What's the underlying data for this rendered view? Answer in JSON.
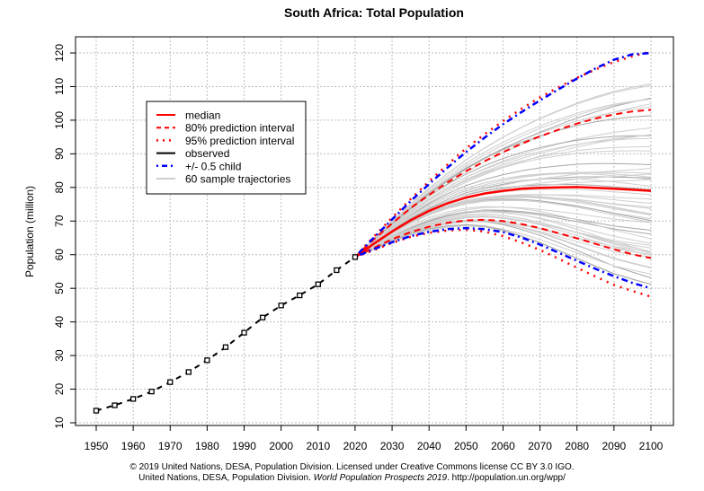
{
  "chart_data": {
    "type": "line",
    "title": "South Africa: Total Population",
    "xlabel": "",
    "ylabel": "Population (million)",
    "xlim": [
      1945,
      2105
    ],
    "ylim": [
      9,
      124
    ],
    "grid": true,
    "xticks": [
      1950,
      1960,
      1970,
      1980,
      1990,
      2000,
      2010,
      2020,
      2030,
      2040,
      2050,
      2060,
      2070,
      2080,
      2090,
      2100
    ],
    "yticks": [
      10,
      20,
      30,
      40,
      50,
      60,
      70,
      80,
      90,
      100,
      110,
      120
    ],
    "legend_position": "top-left",
    "legend": [
      {
        "label": "median",
        "color": "#ff0000",
        "style": "solid"
      },
      {
        "label": "80% prediction interval",
        "color": "#ff0000",
        "style": "dashed"
      },
      {
        "label": "95% prediction interval",
        "color": "#ff0000",
        "style": "dotted"
      },
      {
        "label": "observed",
        "color": "#000000",
        "style": "solid"
      },
      {
        "label": "+/- 0.5 child",
        "color": "#0000ff",
        "style": "dashdot"
      },
      {
        "label": "60 sample trajectories",
        "color": "#bebebe",
        "style": "solid"
      }
    ],
    "observed": {
      "x": [
        1950,
        1955,
        1960,
        1965,
        1970,
        1975,
        1980,
        1985,
        1990,
        1995,
        2000,
        2005,
        2010,
        2015,
        2020
      ],
      "y": [
        13.6,
        15.2,
        17.1,
        19.3,
        22.1,
        25.1,
        28.6,
        32.5,
        36.8,
        41.3,
        44.9,
        47.9,
        51.2,
        55.4,
        59.3
      ]
    },
    "projection_x": [
      2020,
      2025,
      2030,
      2035,
      2040,
      2045,
      2050,
      2055,
      2060,
      2065,
      2070,
      2075,
      2080,
      2085,
      2090,
      2095,
      2100
    ],
    "series": [
      {
        "name": "median",
        "values": [
          59.3,
          63.2,
          66.9,
          70.2,
          73.0,
          75.3,
          77.0,
          78.2,
          79.0,
          79.6,
          79.9,
          80.0,
          80.1,
          79.9,
          79.6,
          79.3,
          79.0
        ]
      },
      {
        "name": "80% PI upper",
        "values": [
          59.3,
          64.5,
          69.3,
          73.8,
          77.8,
          81.5,
          84.8,
          87.8,
          90.5,
          93.0,
          95.2,
          97.2,
          99.0,
          100.5,
          101.7,
          102.6,
          103.1
        ]
      },
      {
        "name": "80% PI lower",
        "values": [
          59.3,
          62.0,
          64.6,
          66.7,
          68.3,
          69.5,
          70.2,
          70.4,
          70.0,
          69.1,
          67.9,
          66.4,
          64.9,
          63.2,
          61.6,
          60.1,
          59.0
        ]
      },
      {
        "name": "95% PI upper",
        "values": [
          59.3,
          65.3,
          71.0,
          76.5,
          81.8,
          86.8,
          91.6,
          95.8,
          99.8,
          103.4,
          106.8,
          109.8,
          112.6,
          115.1,
          117.3,
          119.0,
          120.4
        ]
      },
      {
        "name": "95% PI lower",
        "values": [
          59.3,
          61.3,
          63.5,
          65.3,
          66.5,
          67.2,
          67.4,
          66.9,
          65.5,
          63.6,
          61.4,
          58.8,
          56.1,
          53.5,
          51.0,
          49.2,
          47.5
        ]
      },
      {
        "name": "+0.5 child",
        "values": [
          59.3,
          65.0,
          70.5,
          75.9,
          81.0,
          85.9,
          90.5,
          94.8,
          98.8,
          102.4,
          105.9,
          109.2,
          112.4,
          115.4,
          118.0,
          119.6,
          120.0
        ]
      },
      {
        "name": "-0.5 child",
        "values": [
          59.3,
          61.6,
          63.7,
          65.5,
          66.8,
          67.6,
          67.9,
          67.6,
          66.7,
          65.1,
          63.0,
          60.6,
          58.2,
          55.8,
          53.6,
          51.6,
          50.0
        ]
      }
    ],
    "sample_trajectories_count": 60,
    "sample_trajectories_range_2100": [
      45,
      110
    ]
  },
  "footer": {
    "line1": "© 2019 United Nations, DESA, Population Division. Licensed under Creative Commons license CC BY 3.0 IGO.",
    "line2_prefix": "United Nations, DESA, Population Division. ",
    "line2_italic": "World Population Prospects 2019",
    "line2_suffix": ". http://population.un.org/wpp/"
  }
}
